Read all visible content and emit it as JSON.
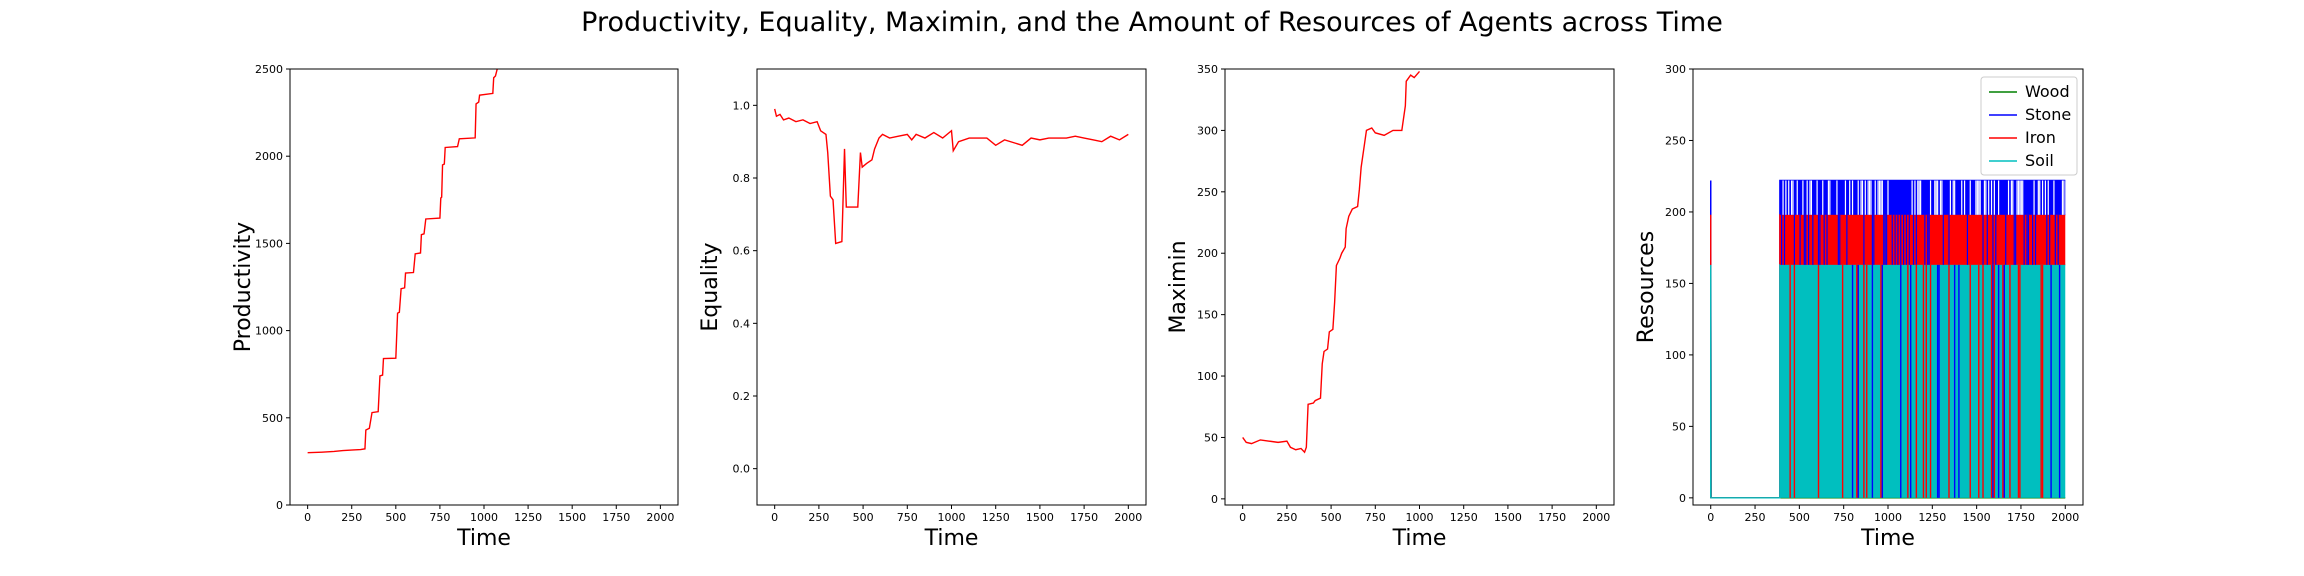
{
  "figure": {
    "title": "Productivity, Equality, Maximin, and the Amount of Resources of Agents across Time"
  },
  "chart_data": [
    {
      "type": "line",
      "title": "",
      "xlabel": "Time",
      "ylabel": "Productivity",
      "xlim": [
        -100,
        2100
      ],
      "ylim": [
        0,
        2500
      ],
      "xticks": [
        0,
        250,
        500,
        750,
        1000,
        1250,
        1500,
        1750,
        2000
      ],
      "yticks": [
        0,
        500,
        1000,
        1500,
        2000,
        2500
      ],
      "series": [
        {
          "color": "#ff0000",
          "points": [
            [
              0,
              300
            ],
            [
              80,
              303
            ],
            [
              150,
              307
            ],
            [
              200,
              312
            ],
            [
              260,
              316
            ],
            [
              300,
              318
            ],
            [
              325,
              322
            ],
            [
              330,
              430
            ],
            [
              350,
              440
            ],
            [
              365,
              530
            ],
            [
              400,
              535
            ],
            [
              410,
              740
            ],
            [
              425,
              745
            ],
            [
              430,
              840
            ],
            [
              500,
              842
            ],
            [
              510,
              1100
            ],
            [
              520,
              1105
            ],
            [
              530,
              1240
            ],
            [
              550,
              1245
            ],
            [
              555,
              1330
            ],
            [
              600,
              1333
            ],
            [
              610,
              1440
            ],
            [
              640,
              1445
            ],
            [
              645,
              1550
            ],
            [
              660,
              1555
            ],
            [
              670,
              1640
            ],
            [
              750,
              1645
            ],
            [
              755,
              1760
            ],
            [
              760,
              1765
            ],
            [
              765,
              1950
            ],
            [
              775,
              1955
            ],
            [
              780,
              2050
            ],
            [
              850,
              2055
            ],
            [
              860,
              2100
            ],
            [
              950,
              2105
            ],
            [
              955,
              2300
            ],
            [
              970,
              2310
            ],
            [
              975,
              2350
            ],
            [
              1050,
              2360
            ],
            [
              1055,
              2450
            ],
            [
              1065,
              2460
            ],
            [
              1075,
              2500
            ]
          ]
        }
      ]
    },
    {
      "type": "line",
      "title": "",
      "xlabel": "Time",
      "ylabel": "Equality",
      "xlim": [
        -100,
        2100
      ],
      "ylim": [
        -0.1,
        1.1
      ],
      "xticks": [
        0,
        250,
        500,
        750,
        1000,
        1250,
        1500,
        1750,
        2000
      ],
      "yticks": [
        0.0,
        0.2,
        0.4,
        0.6,
        0.8,
        1.0
      ],
      "ytick_labels": [
        "0.0",
        "0.2",
        "0.4",
        "0.6",
        "0.8",
        "1.0"
      ],
      "series": [
        {
          "color": "#ff0000",
          "points": [
            [
              0,
              0.99
            ],
            [
              10,
              0.97
            ],
            [
              30,
              0.975
            ],
            [
              50,
              0.96
            ],
            [
              80,
              0.965
            ],
            [
              120,
              0.955
            ],
            [
              160,
              0.96
            ],
            [
              200,
              0.95
            ],
            [
              240,
              0.955
            ],
            [
              260,
              0.93
            ],
            [
              290,
              0.92
            ],
            [
              300,
              0.87
            ],
            [
              315,
              0.75
            ],
            [
              330,
              0.74
            ],
            [
              345,
              0.62
            ],
            [
              380,
              0.625
            ],
            [
              395,
              0.88
            ],
            [
              405,
              0.72
            ],
            [
              470,
              0.72
            ],
            [
              485,
              0.87
            ],
            [
              495,
              0.83
            ],
            [
              520,
              0.84
            ],
            [
              550,
              0.85
            ],
            [
              565,
              0.88
            ],
            [
              590,
              0.91
            ],
            [
              610,
              0.92
            ],
            [
              650,
              0.91
            ],
            [
              700,
              0.915
            ],
            [
              750,
              0.92
            ],
            [
              775,
              0.905
            ],
            [
              800,
              0.92
            ],
            [
              850,
              0.91
            ],
            [
              900,
              0.925
            ],
            [
              950,
              0.91
            ],
            [
              1000,
              0.93
            ],
            [
              1010,
              0.875
            ],
            [
              1040,
              0.9
            ],
            [
              1100,
              0.91
            ],
            [
              1200,
              0.91
            ],
            [
              1250,
              0.89
            ],
            [
              1300,
              0.905
            ],
            [
              1400,
              0.89
            ],
            [
              1450,
              0.91
            ],
            [
              1500,
              0.905
            ],
            [
              1550,
              0.91
            ],
            [
              1650,
              0.91
            ],
            [
              1700,
              0.915
            ],
            [
              1750,
              0.91
            ],
            [
              1800,
              0.905
            ],
            [
              1850,
              0.9
            ],
            [
              1900,
              0.915
            ],
            [
              1950,
              0.905
            ],
            [
              2000,
              0.92
            ]
          ]
        }
      ]
    },
    {
      "type": "line",
      "title": "",
      "xlabel": "Time",
      "ylabel": "Maximin",
      "xlim": [
        -100,
        2100
      ],
      "ylim": [
        -5,
        350
      ],
      "xticks": [
        0,
        250,
        500,
        750,
        1000,
        1250,
        1500,
        1750,
        2000
      ],
      "yticks": [
        0,
        50,
        100,
        150,
        200,
        250,
        300,
        350
      ],
      "series": [
        {
          "color": "#ff0000",
          "points": [
            [
              0,
              50
            ],
            [
              20,
              46
            ],
            [
              50,
              45
            ],
            [
              100,
              48
            ],
            [
              150,
              47
            ],
            [
              200,
              46
            ],
            [
              250,
              47
            ],
            [
              270,
              42
            ],
            [
              300,
              40
            ],
            [
              330,
              41
            ],
            [
              350,
              38
            ],
            [
              360,
              42
            ],
            [
              370,
              77
            ],
            [
              400,
              78
            ],
            [
              410,
              80
            ],
            [
              440,
              82
            ],
            [
              450,
              110
            ],
            [
              460,
              120
            ],
            [
              480,
              122
            ],
            [
              490,
              136
            ],
            [
              510,
              138
            ],
            [
              520,
              160
            ],
            [
              530,
              190
            ],
            [
              550,
              196
            ],
            [
              560,
              200
            ],
            [
              580,
              205
            ],
            [
              585,
              220
            ],
            [
              600,
              230
            ],
            [
              620,
              236
            ],
            [
              650,
              238
            ],
            [
              660,
              252
            ],
            [
              670,
              270
            ],
            [
              690,
              290
            ],
            [
              700,
              300
            ],
            [
              730,
              302
            ],
            [
              750,
              298
            ],
            [
              800,
              296
            ],
            [
              850,
              300
            ],
            [
              880,
              300
            ],
            [
              900,
              300
            ],
            [
              920,
              320
            ],
            [
              925,
              340
            ],
            [
              950,
              345
            ],
            [
              970,
              343
            ],
            [
              1000,
              348
            ]
          ]
        }
      ]
    },
    {
      "type": "line",
      "title": "",
      "xlabel": "Time",
      "ylabel": "Resources",
      "xlim": [
        -100,
        2100
      ],
      "ylim": [
        -5,
        300
      ],
      "xticks": [
        0,
        250,
        500,
        750,
        1000,
        1250,
        1500,
        1750,
        2000
      ],
      "yticks": [
        0,
        50,
        100,
        150,
        200,
        250,
        300
      ],
      "legend": "top-right",
      "series": [
        {
          "name": "Wood",
          "color": "#008000",
          "points": [
            [
              0,
              0
            ],
            [
              0,
              160
            ],
            [
              2,
              0
            ],
            [
              390,
              0
            ],
            [
              2000,
              0
            ]
          ]
        },
        {
          "name": "Stone",
          "color": "#0000ff",
          "points": [
            [
              0,
              0
            ],
            [
              0,
              222
            ],
            [
              2,
              0
            ],
            [
              390,
              0
            ],
            [
              390,
              222
            ],
            [
              2000,
              222
            ]
          ]
        },
        {
          "name": "Iron",
          "color": "#ff0000",
          "points": [
            [
              0,
              0
            ],
            [
              0,
              198
            ],
            [
              2,
              0
            ],
            [
              390,
              0
            ],
            [
              390,
              198
            ],
            [
              2000,
              198
            ]
          ]
        },
        {
          "name": "Soil",
          "color": "#00bfbf",
          "points": [
            [
              0,
              0
            ],
            [
              0,
              163
            ],
            [
              2,
              0
            ],
            [
              390,
              0
            ],
            [
              390,
              163
            ],
            [
              2000,
              163
            ]
          ]
        }
      ]
    }
  ]
}
